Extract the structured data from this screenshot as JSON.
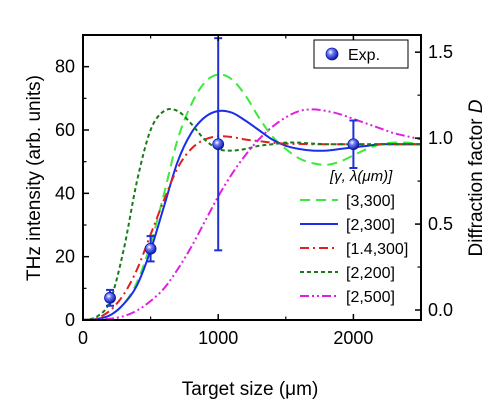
{
  "chart_data": {
    "type": "line",
    "xlabel": "Target size (μm)",
    "ylabel_left": "THz intensity (arb. units)",
    "ylabel_right_prefix": "Diffraction factor ",
    "ylabel_right_symbol": "D",
    "xlim": [
      0,
      2500
    ],
    "ylim_left": [
      0,
      90
    ],
    "ylim_right": [
      -0.058,
      1.6
    ],
    "x_ticks": [
      {
        "value": 0,
        "label": "0"
      },
      {
        "value": 1000,
        "label": "1000"
      },
      {
        "value": 2000,
        "label": "2000"
      }
    ],
    "y_left_ticks": [
      {
        "value": 0,
        "label": "0"
      },
      {
        "value": 20,
        "label": "20"
      },
      {
        "value": 40,
        "label": "40"
      },
      {
        "value": 60,
        "label": "60"
      },
      {
        "value": 80,
        "label": "80"
      }
    ],
    "y_right_ticks": [
      {
        "value": 0.0,
        "label": "0.0"
      },
      {
        "value": 0.5,
        "label": "0.5"
      },
      {
        "value": 1.0,
        "label": "1.0"
      },
      {
        "value": 1.5,
        "label": "1.5"
      }
    ],
    "legend_header": "[γ, λ(μm)]",
    "exp_legend_label": "Exp.",
    "experimental": {
      "name": "Exp.",
      "color": "#1f2fd6",
      "x": [
        200,
        500,
        1000,
        2000
      ],
      "y": [
        7,
        22.5,
        55.5,
        55.5
      ],
      "err": [
        2.5,
        4,
        33.5,
        7.5
      ]
    },
    "series": [
      {
        "name": "[3,300]",
        "color": "#3ee83e",
        "dash": "10,6",
        "x": [
          0,
          100,
          200,
          300,
          400,
          500,
          600,
          700,
          800,
          900,
          1000,
          1100,
          1200,
          1300,
          1400,
          1500,
          1600,
          1700,
          1800,
          1900,
          2000,
          2100,
          2200,
          2300,
          2400,
          2500
        ],
        "y": [
          0,
          0.3,
          1.5,
          5,
          12,
          24,
          40,
          57,
          68,
          75,
          77.5,
          76,
          71,
          64,
          58,
          54,
          51,
          49.5,
          49,
          50,
          52,
          54,
          55.5,
          56,
          56,
          55.5
        ]
      },
      {
        "name": "[2,300]",
        "color": "#1a2ee8",
        "dash": "",
        "x": [
          0,
          100,
          200,
          300,
          400,
          500,
          600,
          700,
          800,
          900,
          1000,
          1100,
          1200,
          1300,
          1400,
          1500,
          1600,
          1700,
          1800,
          1900,
          2000,
          2100,
          2200,
          2300,
          2400,
          2500
        ],
        "y": [
          0,
          0.3,
          1.5,
          5,
          11,
          22,
          36,
          50,
          59,
          64,
          66,
          65.5,
          63,
          60,
          57,
          55,
          54,
          53.5,
          53.5,
          54,
          54.5,
          55,
          55.5,
          55.5,
          55.5,
          55.5
        ]
      },
      {
        "name": "[1.4,300]",
        "color": "#e02020",
        "dash": "9,4,2,4",
        "x": [
          0,
          100,
          200,
          300,
          400,
          500,
          600,
          700,
          800,
          900,
          1000,
          1100,
          1200,
          1300,
          1400,
          1500,
          1600,
          1700,
          1800,
          1900,
          2000,
          2100,
          2200,
          2300,
          2400,
          2500
        ],
        "y": [
          0,
          0.5,
          3,
          8,
          16,
          27,
          38,
          48,
          54,
          57,
          58,
          57.8,
          57,
          56.5,
          56,
          55.7,
          55.6,
          55.5,
          55.5,
          55.5,
          55.5,
          55.5,
          55.5,
          55.5,
          55.5,
          55.5
        ]
      },
      {
        "name": "[2,200]",
        "color": "#1a7a1a",
        "dash": "4,3",
        "x": [
          0,
          100,
          200,
          300,
          400,
          500,
          600,
          700,
          800,
          900,
          1000,
          1100,
          1200,
          1300,
          1400,
          1500,
          1600,
          1700,
          1800,
          1900,
          2000,
          2100,
          2200,
          2300,
          2400,
          2500
        ],
        "y": [
          0,
          1,
          6,
          22,
          44,
          60,
          66,
          66,
          62,
          57,
          54,
          53.5,
          54,
          55,
          55.5,
          56,
          56,
          55.7,
          55.5,
          55.5,
          55.5,
          55.5,
          55.5,
          55.5,
          55.5,
          55.5
        ]
      },
      {
        "name": "[2,500]",
        "color": "#e020e0",
        "dash": "9,3,2,3,2,3",
        "x": [
          0,
          100,
          200,
          300,
          400,
          500,
          600,
          700,
          800,
          900,
          1000,
          1100,
          1200,
          1300,
          1400,
          1500,
          1600,
          1700,
          1800,
          1900,
          2000,
          2100,
          2200,
          2300,
          2400,
          2500
        ],
        "y": [
          0,
          0.1,
          0.4,
          1.2,
          3,
          6,
          10,
          16,
          23,
          31,
          39,
          46,
          52,
          57,
          61,
          64,
          66,
          66.5,
          66,
          65,
          63.5,
          62,
          60.5,
          59,
          58,
          57
        ]
      }
    ]
  }
}
